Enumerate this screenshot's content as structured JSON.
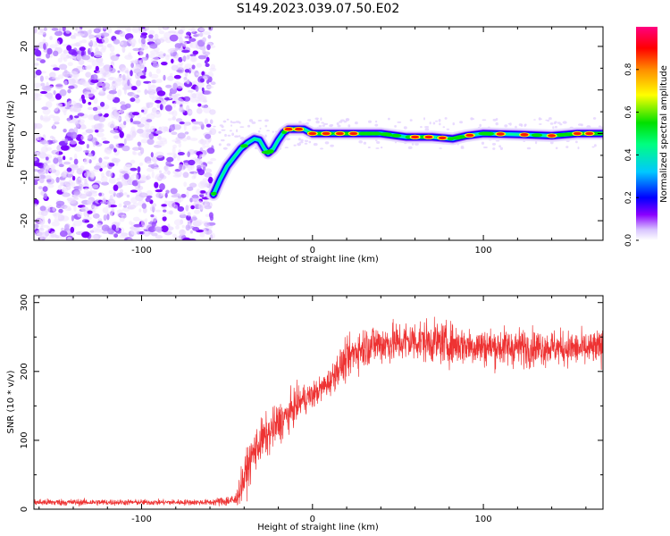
{
  "title": "S149.2023.039.07.50.E02",
  "chart_data": [
    {
      "type": "heatmap",
      "xlabel": "Height of straight line (km)",
      "ylabel": "Frequency (Hz)",
      "xlim": [
        -163,
        170
      ],
      "ylim": [
        -24.5,
        24.5
      ],
      "x_ticks": [
        -100,
        0,
        100
      ],
      "y_ticks": [
        -20,
        -10,
        0,
        10,
        20
      ],
      "noise_region_x": [
        -163,
        -58
      ],
      "ridge": [
        {
          "x": -58,
          "y": -14
        },
        {
          "x": -54,
          "y": -10.5
        },
        {
          "x": -50,
          "y": -7.5
        },
        {
          "x": -46,
          "y": -5.5
        },
        {
          "x": -42,
          "y": -3.5
        },
        {
          "x": -38,
          "y": -2.2
        },
        {
          "x": -34,
          "y": -1.2
        },
        {
          "x": -31,
          "y": -1.5
        },
        {
          "x": -28,
          "y": -3.5
        },
        {
          "x": -26,
          "y": -4.5
        },
        {
          "x": -23,
          "y": -3.5
        },
        {
          "x": -20,
          "y": -1.5
        },
        {
          "x": -17,
          "y": 0.2
        },
        {
          "x": -14,
          "y": 1.0
        },
        {
          "x": -5,
          "y": 1.0
        },
        {
          "x": 0,
          "y": 0
        },
        {
          "x": 20,
          "y": 0
        },
        {
          "x": 40,
          "y": 0
        },
        {
          "x": 55,
          "y": -0.8
        },
        {
          "x": 70,
          "y": -0.8
        },
        {
          "x": 82,
          "y": -1.2
        },
        {
          "x": 90,
          "y": -0.5
        },
        {
          "x": 100,
          "y": 0
        },
        {
          "x": 120,
          "y": -0.2
        },
        {
          "x": 140,
          "y": -0.5
        },
        {
          "x": 155,
          "y": 0
        },
        {
          "x": 170,
          "y": 0
        }
      ],
      "peaks": [
        {
          "x": -14,
          "y": 0.95
        },
        {
          "x": -8,
          "y": 0.95
        },
        {
          "x": 0,
          "y": 0.95
        },
        {
          "x": 8,
          "y": 0.95
        },
        {
          "x": 16,
          "y": 0.95
        },
        {
          "x": 24,
          "y": 0.9
        },
        {
          "x": 60,
          "y": 0.9
        },
        {
          "x": 68,
          "y": 0.95
        },
        {
          "x": 76,
          "y": 0.9
        },
        {
          "x": 92,
          "y": 0.85
        },
        {
          "x": 110,
          "y": 0.85
        },
        {
          "x": 124,
          "y": 0.85
        },
        {
          "x": 140,
          "y": 0.85
        },
        {
          "x": 155,
          "y": 0.95
        },
        {
          "x": 162,
          "y": 0.9
        }
      ],
      "colorbar": {
        "label": "Normalized spectral amplitude",
        "range": [
          0,
          1
        ],
        "ticks": [
          "0.0",
          "0.2",
          "0.4",
          "0.6",
          "0.8"
        ],
        "colormap": [
          "#ffffff",
          "#f0e6ff",
          "#c9a6ff",
          "#7a00ff",
          "#0000ff",
          "#00c8ff",
          "#00ff80",
          "#00e000",
          "#ffff00",
          "#ff8c00",
          "#ff0000",
          "#ff0080"
        ]
      },
      "grid": false
    },
    {
      "type": "line",
      "xlabel": "Height of straight line (km)",
      "ylabel": "SNR (10 * v/v)",
      "xlim": [
        -163,
        170
      ],
      "ylim": [
        0,
        310
      ],
      "x_ticks": [
        -100,
        0,
        100
      ],
      "y_ticks": [
        0,
        100,
        200,
        300
      ],
      "color": "#ee3333",
      "grid": false,
      "series": [
        {
          "x": [
            -163,
            -100,
            -60,
            -45,
            -40,
            -35,
            -30,
            -25,
            -20,
            -15,
            -10,
            -5,
            0,
            5,
            10,
            15,
            20,
            25,
            30,
            35,
            40,
            50,
            60,
            70,
            80,
            90,
            100,
            120,
            140,
            160,
            170
          ],
          "values": [
            10,
            10,
            10,
            13,
            45,
            80,
            100,
            110,
            125,
            135,
            150,
            160,
            165,
            175,
            185,
            205,
            215,
            230,
            235,
            240,
            240,
            242,
            245,
            243,
            240,
            238,
            236,
            235,
            235,
            232,
            235
          ],
          "spread": [
            5,
            4,
            4,
            10,
            30,
            30,
            30,
            30,
            30,
            28,
            25,
            22,
            20,
            18,
            20,
            25,
            28,
            30,
            30,
            30,
            30,
            30,
            30,
            30,
            30,
            28,
            28,
            28,
            25,
            25,
            25
          ]
        }
      ]
    }
  ]
}
